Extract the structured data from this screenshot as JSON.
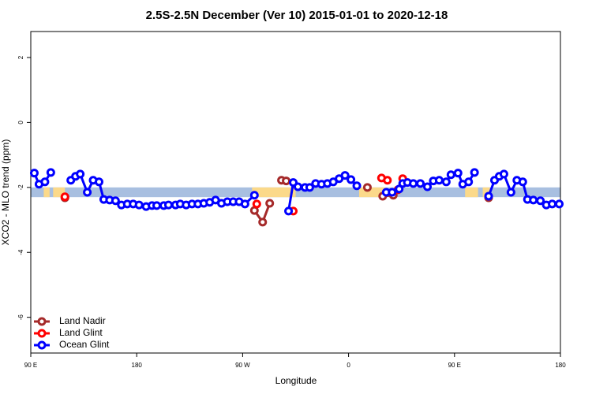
{
  "chart_data": {
    "type": "line",
    "title": "2.5S-2.5N December (Ver 10)   2015-01-01 to 2020-12-18",
    "x_label": "Longitude",
    "y_label": "XCO2 - MLO trend (ppm)",
    "xlim": [
      90,
      540
    ],
    "xticks": [
      {
        "value": 90,
        "label": "90 E"
      },
      {
        "value": 180,
        "label": "180"
      },
      {
        "value": 270,
        "label": "90 W"
      },
      {
        "value": 360,
        "label": "0"
      },
      {
        "value": 450,
        "label": "90 E"
      },
      {
        "value": 540,
        "label": "180"
      }
    ],
    "ylim": [
      -7.1,
      2.8
    ],
    "yticks": [
      -6,
      -4,
      -2,
      0,
      2
    ],
    "legend": "bottom-left",
    "band": {
      "ylim": [
        -2.3,
        -2.0
      ],
      "color": "#a8bfe0",
      "land_color": "#fbd98a",
      "land": [
        [
          101,
          106
        ],
        [
          109,
          119
        ],
        [
          278,
          315
        ],
        [
          369,
          392
        ],
        [
          459,
          470
        ],
        [
          474,
          480
        ]
      ]
    },
    "series": [
      {
        "name": "Land Nadir",
        "color": "#a52a2a",
        "x": [
          119,
          null,
          280,
          287,
          293,
          null,
          303,
          307,
          null,
          376,
          null,
          389,
          398,
          null,
          479
        ],
        "values": [
          -2.32,
          null,
          -2.71,
          -3.07,
          -2.49,
          null,
          -1.78,
          -1.8,
          null,
          -2.0,
          null,
          -2.27,
          -2.24,
          null,
          -2.32
        ]
      },
      {
        "name": "Land Glint",
        "color": "#ff0000",
        "x": [
          119,
          null,
          282,
          null,
          313,
          null,
          388,
          393,
          null,
          402,
          406
        ],
        "values": [
          -2.29,
          null,
          -2.51,
          null,
          -2.73,
          null,
          -1.71,
          -1.78,
          null,
          -2.07,
          -1.73
        ]
      },
      {
        "name": "Ocean Glint",
        "color": "#0000ff",
        "x": [
          93,
          97,
          102,
          107,
          null,
          124,
          128,
          132,
          138,
          143,
          148,
          152,
          157,
          162,
          167,
          172,
          177,
          182,
          188,
          193,
          197,
          203,
          207,
          213,
          217,
          222,
          227,
          232,
          237,
          242,
          247,
          252,
          257,
          262,
          267,
          272,
          280,
          null,
          309,
          313,
          317,
          323,
          327,
          332,
          337,
          342,
          347,
          352,
          357,
          362,
          367,
          null,
          392,
          397,
          403,
          406,
          410,
          415,
          421,
          427,
          432,
          437,
          443,
          447,
          453,
          457,
          462,
          467,
          null,
          479,
          484,
          488,
          492,
          498,
          503,
          508,
          512,
          517,
          523,
          528,
          533,
          539
        ],
        "values": [
          -1.56,
          -1.9,
          -1.83,
          -1.54,
          null,
          -1.78,
          -1.66,
          -1.59,
          -2.15,
          -1.78,
          -1.83,
          -2.37,
          -2.39,
          -2.41,
          -2.54,
          -2.51,
          -2.51,
          -2.54,
          -2.59,
          -2.56,
          -2.56,
          -2.56,
          -2.54,
          -2.54,
          -2.51,
          -2.54,
          -2.51,
          -2.51,
          -2.49,
          -2.46,
          -2.39,
          -2.49,
          -2.44,
          -2.44,
          -2.44,
          -2.51,
          -2.24,
          null,
          -2.73,
          -1.85,
          -1.98,
          -2.0,
          -2.0,
          -1.88,
          -1.9,
          -1.88,
          -1.83,
          -1.73,
          -1.63,
          -1.76,
          -1.95,
          null,
          -2.15,
          -2.15,
          -2.05,
          -1.88,
          -1.85,
          -1.88,
          -1.88,
          -1.98,
          -1.8,
          -1.78,
          -1.83,
          -1.61,
          -1.56,
          -1.9,
          -1.83,
          -1.54,
          null,
          -2.27,
          -1.78,
          -1.66,
          -1.59,
          -2.15,
          -1.78,
          -1.83,
          -2.37,
          -2.39,
          -2.41,
          -2.54,
          -2.51,
          -2.51
        ]
      }
    ]
  }
}
